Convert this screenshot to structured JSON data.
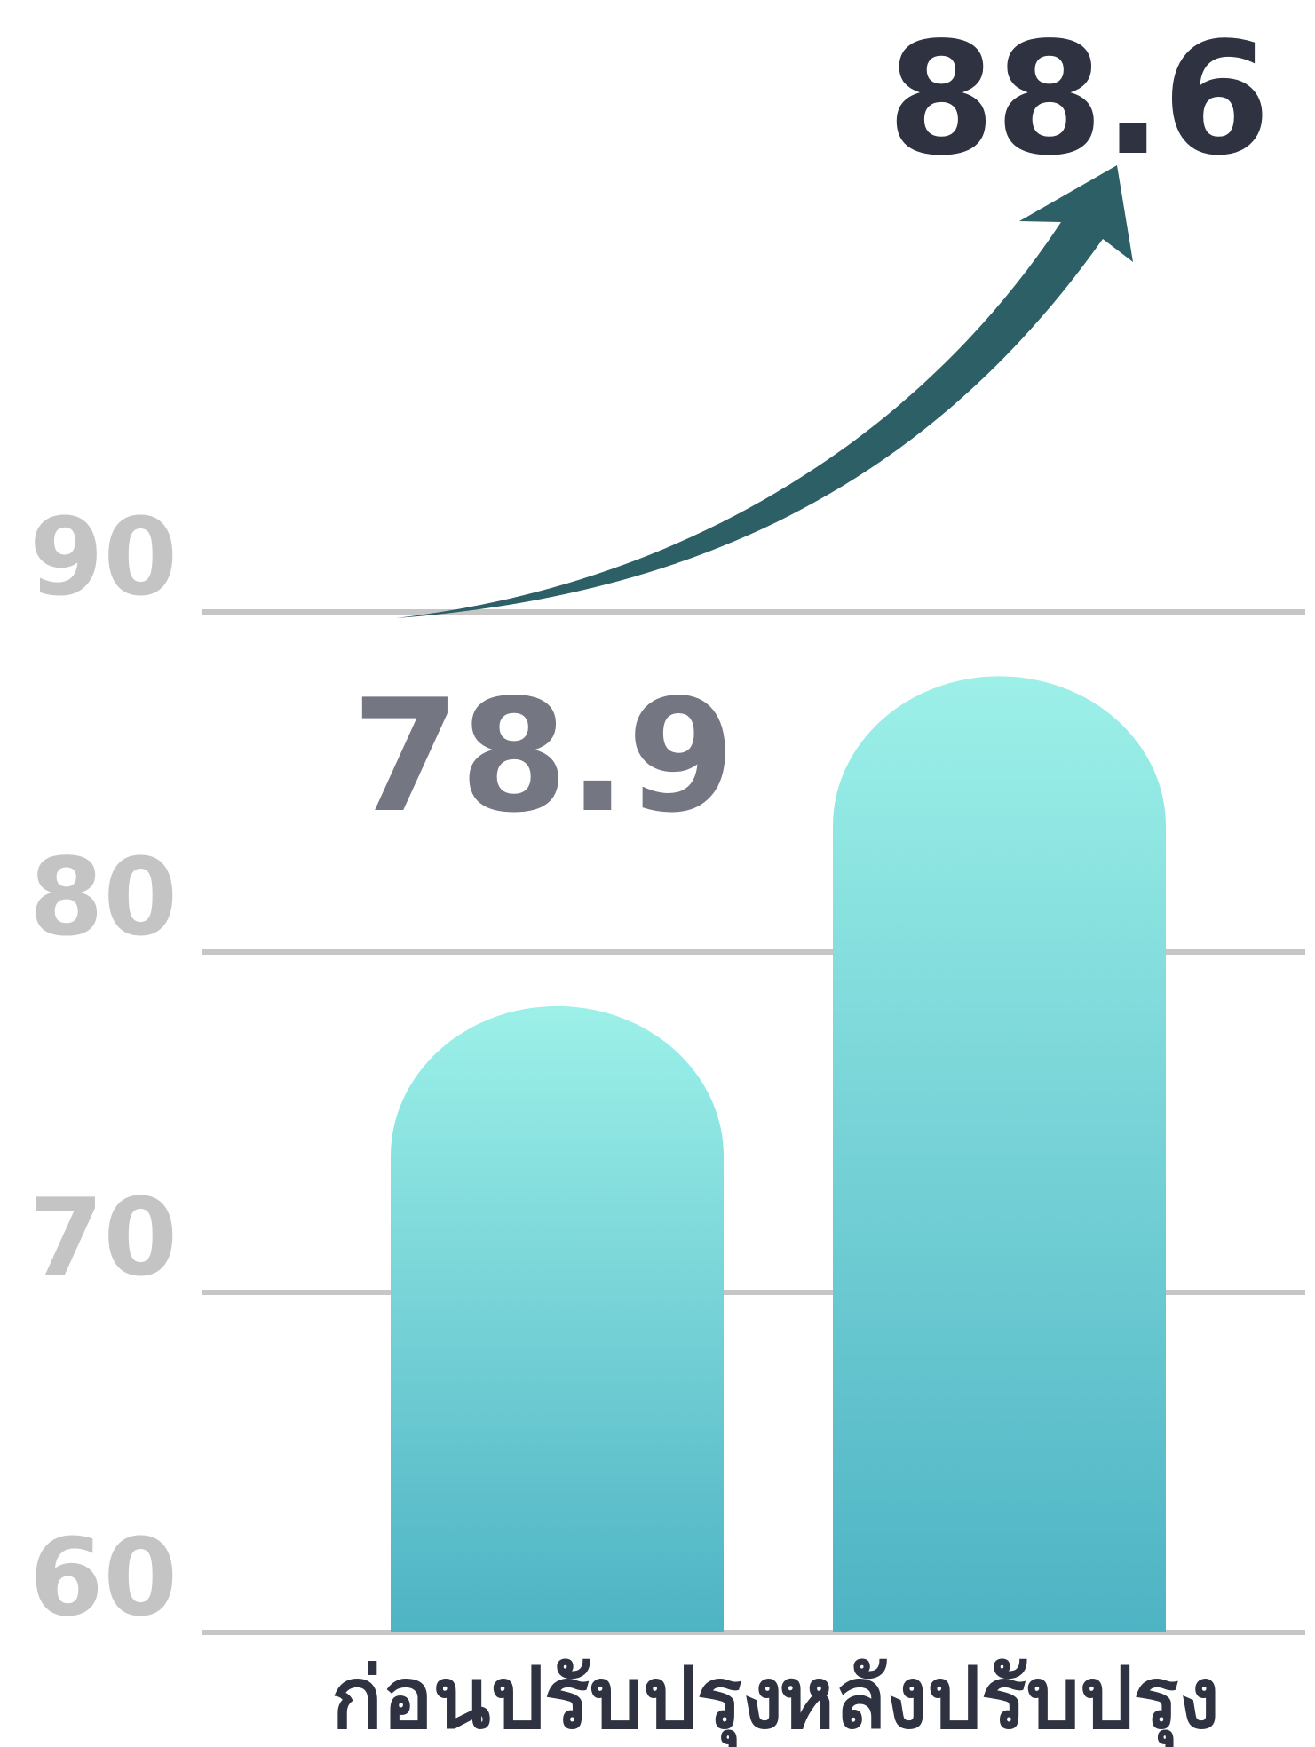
{
  "chart_data": {
    "type": "bar",
    "categories": [
      "ก่อนปรับปรุง",
      "หลังปรับปรุง"
    ],
    "values": [
      78.9,
      88.6
    ],
    "value_labels": [
      "78.9",
      "88.6"
    ],
    "yticks": [
      60,
      70,
      80,
      90
    ],
    "ylim": [
      60,
      90
    ],
    "grid": true,
    "title": "",
    "xlabel": "",
    "ylabel": "",
    "colors": {
      "bar_top": "#9cf0e8",
      "bar_bottom": "#4eb3c4",
      "gridline": "#c6c6c6",
      "tick_label": "#c4c4c4",
      "value_label_before": "#747782",
      "value_label_after": "#2f3341",
      "arrow": "#2d5f66",
      "category_label": "#2f3341"
    },
    "annotations": [
      "up-arrow"
    ]
  }
}
